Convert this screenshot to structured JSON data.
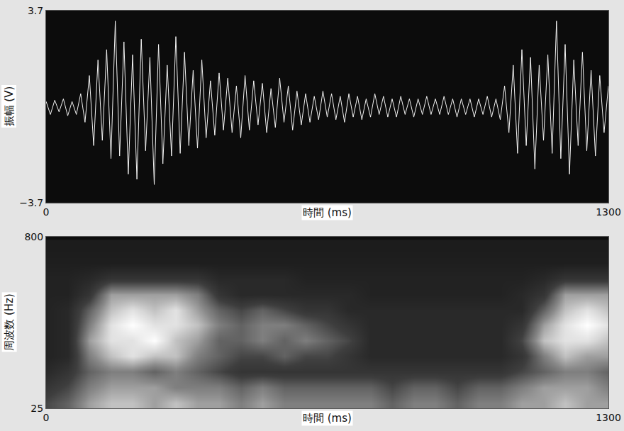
{
  "chart_data": [
    {
      "type": "line",
      "x_label": "時間 (ms)",
      "y_label": "振幅 (V)",
      "x": [
        0,
        10,
        20,
        30,
        40,
        50,
        60,
        70,
        80,
        90,
        100,
        110,
        120,
        130,
        140,
        150,
        160,
        170,
        180,
        190,
        200,
        210,
        220,
        230,
        240,
        250,
        260,
        270,
        280,
        290,
        300,
        310,
        320,
        330,
        340,
        350,
        360,
        370,
        380,
        390,
        400,
        410,
        420,
        430,
        440,
        450,
        460,
        470,
        480,
        490,
        500,
        510,
        520,
        530,
        540,
        550,
        560,
        570,
        580,
        590,
        600,
        610,
        620,
        630,
        640,
        650,
        660,
        670,
        680,
        690,
        700,
        710,
        720,
        730,
        740,
        750,
        760,
        770,
        780,
        790,
        800,
        810,
        820,
        830,
        840,
        850,
        860,
        870,
        880,
        890,
        900,
        910,
        920,
        930,
        940,
        950,
        960,
        970,
        980,
        990,
        1000,
        1010,
        1020,
        1030,
        1040,
        1050,
        1060,
        1070,
        1080,
        1090,
        1100,
        1110,
        1120,
        1130,
        1140,
        1150,
        1160,
        1170,
        1180,
        1190,
        1200,
        1210,
        1220,
        1230,
        1240,
        1250,
        1260,
        1270,
        1280,
        1290,
        1300
      ],
      "values": [
        0.2,
        -0.3,
        0.25,
        -0.2,
        0.3,
        -0.35,
        0.2,
        -0.3,
        0.5,
        -0.6,
        1.2,
        -1.5,
        1.8,
        -1.3,
        2.2,
        -2.0,
        3.3,
        -1.9,
        2.5,
        -2.6,
        2.0,
        -2.8,
        2.6,
        -1.7,
        1.9,
        -3.0,
        2.4,
        -2.2,
        1.6,
        -1.9,
        2.7,
        -1.8,
        2.1,
        -1.5,
        1.4,
        -1.6,
        1.8,
        -1.2,
        1.0,
        -1.1,
        1.3,
        -0.9,
        1.1,
        -1.0,
        0.8,
        -1.2,
        1.2,
        -0.9,
        1.0,
        -0.7,
        0.9,
        -1.0,
        0.7,
        -0.8,
        1.1,
        -0.6,
        0.8,
        -0.9,
        0.6,
        -0.7,
        0.5,
        -0.6,
        0.4,
        -0.5,
        0.6,
        -0.4,
        0.5,
        -0.5,
        0.4,
        -0.6,
        0.5,
        -0.4,
        0.4,
        -0.5,
        0.3,
        -0.4,
        0.5,
        -0.3,
        0.4,
        -0.4,
        0.3,
        -0.4,
        0.4,
        -0.3,
        0.3,
        -0.4,
        0.3,
        -0.3,
        0.4,
        -0.3,
        0.3,
        -0.3,
        0.4,
        -0.3,
        0.3,
        -0.4,
        0.3,
        -0.3,
        0.3,
        -0.4,
        0.3,
        -0.3,
        0.4,
        -0.4,
        0.3,
        -0.5,
        0.8,
        -1.0,
        1.6,
        -1.8,
        2.2,
        -1.5,
        1.9,
        -2.4,
        1.6,
        -1.3,
        2.0,
        -1.8,
        3.3,
        -2.0,
        2.4,
        -2.6,
        1.8,
        -1.5,
        2.1,
        -1.7,
        1.4,
        -1.9,
        1.2,
        -1.0,
        0.8
      ],
      "color": "#f2f2f2",
      "xlim": [
        0,
        1300
      ],
      "ylim": [
        -3.7,
        3.7
      ],
      "xticks": [
        0,
        1300
      ],
      "yticks": [
        {
          "value": -3.7,
          "label": "−3.7"
        },
        3.7
      ],
      "grid": false
    },
    {
      "type": "heatmap",
      "x_label": "時間 (ms)",
      "y_label": "周波数 (Hz)",
      "x": [
        0,
        50,
        100,
        150,
        200,
        250,
        300,
        350,
        400,
        450,
        500,
        550,
        600,
        650,
        700,
        750,
        800,
        850,
        900,
        950,
        1000,
        1050,
        1100,
        1150,
        1200,
        1250,
        1300
      ],
      "y": [
        50,
        120,
        190,
        260,
        330,
        400,
        470,
        540,
        610,
        680,
        750
      ],
      "cells": [
        [
          0.4,
          0.5,
          0.7,
          0.8,
          0.8,
          0.7,
          0.8,
          0.7,
          0.7,
          0.6,
          0.7,
          0.6,
          0.6,
          0.6,
          0.6,
          0.6,
          0.5,
          0.6,
          0.6,
          0.5,
          0.6,
          0.6,
          0.7,
          0.7,
          0.8,
          0.7,
          0.7
        ],
        [
          0.3,
          0.4,
          0.6,
          0.7,
          0.7,
          0.7,
          0.6,
          0.6,
          0.6,
          0.5,
          0.6,
          0.5,
          0.5,
          0.5,
          0.5,
          0.5,
          0.4,
          0.5,
          0.5,
          0.4,
          0.5,
          0.5,
          0.6,
          0.7,
          0.7,
          0.7,
          0.6
        ],
        [
          0.2,
          0.3,
          0.5,
          0.6,
          0.6,
          0.5,
          0.6,
          0.5,
          0.4,
          0.3,
          0.3,
          0.3,
          0.3,
          0.3,
          0.3,
          0.3,
          0.3,
          0.3,
          0.3,
          0.3,
          0.3,
          0.3,
          0.4,
          0.5,
          0.6,
          0.6,
          0.5
        ],
        [
          0.15,
          0.2,
          0.6,
          0.8,
          0.9,
          0.8,
          0.8,
          0.6,
          0.5,
          0.4,
          0.4,
          0.5,
          0.4,
          0.4,
          0.3,
          0.2,
          0.2,
          0.2,
          0.2,
          0.2,
          0.2,
          0.2,
          0.3,
          0.6,
          0.8,
          0.7,
          0.7
        ],
        [
          0.15,
          0.2,
          0.7,
          0.9,
          0.9,
          1.0,
          0.8,
          0.7,
          0.5,
          0.5,
          0.6,
          0.5,
          0.6,
          0.5,
          0.4,
          0.2,
          0.2,
          0.2,
          0.2,
          0.2,
          0.2,
          0.2,
          0.4,
          0.8,
          0.9,
          0.9,
          0.8
        ],
        [
          0.15,
          0.2,
          0.6,
          0.9,
          1.0,
          0.9,
          0.9,
          0.8,
          0.6,
          0.5,
          0.6,
          0.6,
          0.5,
          0.4,
          0.3,
          0.2,
          0.2,
          0.2,
          0.2,
          0.2,
          0.2,
          0.2,
          0.3,
          0.7,
          0.9,
          1.0,
          0.9
        ],
        [
          0.15,
          0.2,
          0.5,
          0.8,
          0.9,
          0.8,
          0.9,
          0.7,
          0.5,
          0.4,
          0.5,
          0.4,
          0.3,
          0.3,
          0.2,
          0.2,
          0.2,
          0.2,
          0.2,
          0.2,
          0.2,
          0.2,
          0.2,
          0.5,
          0.8,
          0.9,
          0.8
        ],
        [
          0.15,
          0.15,
          0.3,
          0.7,
          0.7,
          0.7,
          0.7,
          0.6,
          0.3,
          0.2,
          0.2,
          0.2,
          0.2,
          0.2,
          0.2,
          0.15,
          0.15,
          0.15,
          0.15,
          0.15,
          0.15,
          0.15,
          0.2,
          0.3,
          0.7,
          0.7,
          0.7
        ],
        [
          0.15,
          0.15,
          0.2,
          0.3,
          0.3,
          0.3,
          0.3,
          0.3,
          0.2,
          0.2,
          0.2,
          0.2,
          0.15,
          0.15,
          0.15,
          0.15,
          0.15,
          0.15,
          0.15,
          0.15,
          0.15,
          0.15,
          0.15,
          0.2,
          0.3,
          0.3,
          0.3
        ],
        [
          0.12,
          0.12,
          0.12,
          0.12,
          0.12,
          0.12,
          0.12,
          0.12,
          0.12,
          0.12,
          0.12,
          0.12,
          0.12,
          0.12,
          0.12,
          0.12,
          0.12,
          0.12,
          0.12,
          0.12,
          0.12,
          0.12,
          0.12,
          0.12,
          0.12,
          0.12,
          0.12
        ],
        [
          0.1,
          0.1,
          0.1,
          0.1,
          0.1,
          0.1,
          0.1,
          0.1,
          0.1,
          0.1,
          0.1,
          0.1,
          0.1,
          0.1,
          0.1,
          0.1,
          0.1,
          0.1,
          0.1,
          0.1,
          0.1,
          0.1,
          0.1,
          0.1,
          0.1,
          0.1,
          0.1
        ]
      ],
      "xlim": [
        0,
        1300
      ],
      "ylim": [
        25,
        800
      ],
      "xticks": [
        0,
        1300
      ],
      "yticks": [
        25,
        800
      ],
      "grid": false
    }
  ]
}
